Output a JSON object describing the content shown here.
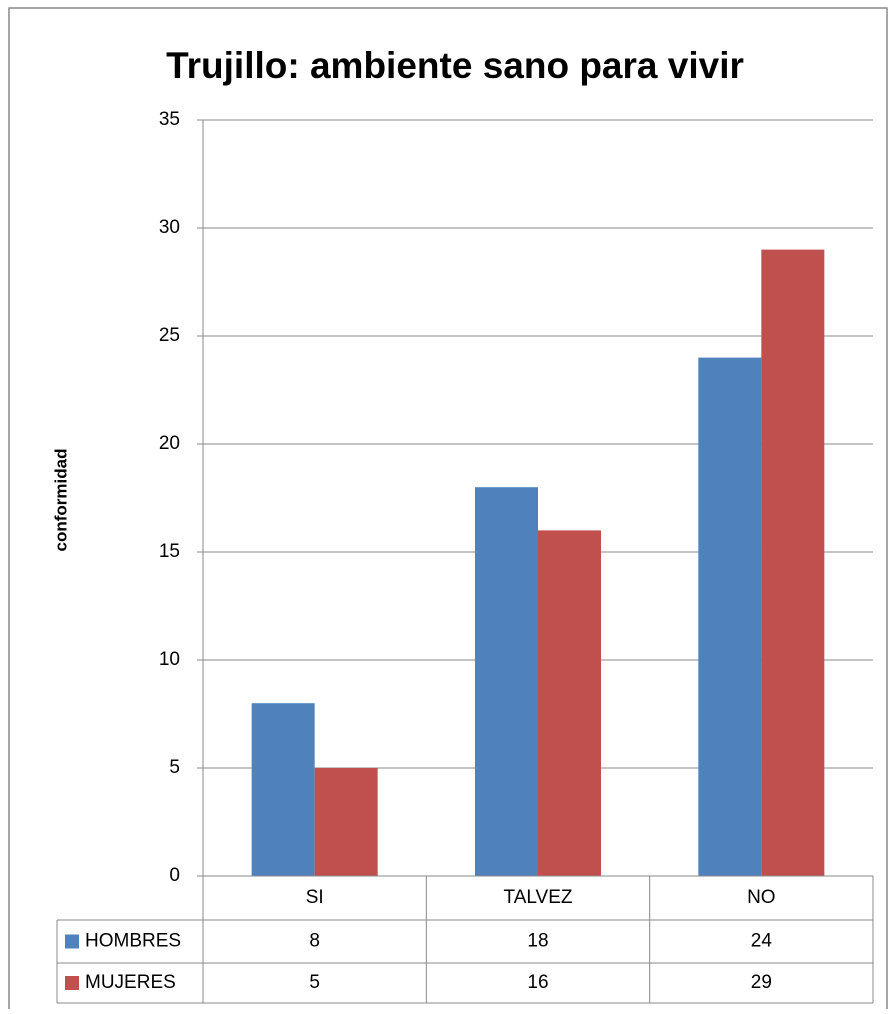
{
  "chart_data": {
    "type": "bar",
    "title": "Trujillo: ambiente sano para vivir",
    "y_label": "conformidad",
    "categories": [
      "SI",
      "TALVEZ",
      "NO"
    ],
    "series": [
      {
        "name": "HOMBRES",
        "color": "#4f81bd",
        "values": [
          8,
          18,
          24
        ]
      },
      {
        "name": "MUJERES",
        "color": "#c0504d",
        "values": [
          5,
          16,
          29
        ]
      }
    ],
    "ylim": [
      0,
      35
    ],
    "yticks": [
      0,
      5,
      10,
      15,
      20,
      25,
      30,
      35
    ],
    "grid": true,
    "legend": "data-table"
  }
}
